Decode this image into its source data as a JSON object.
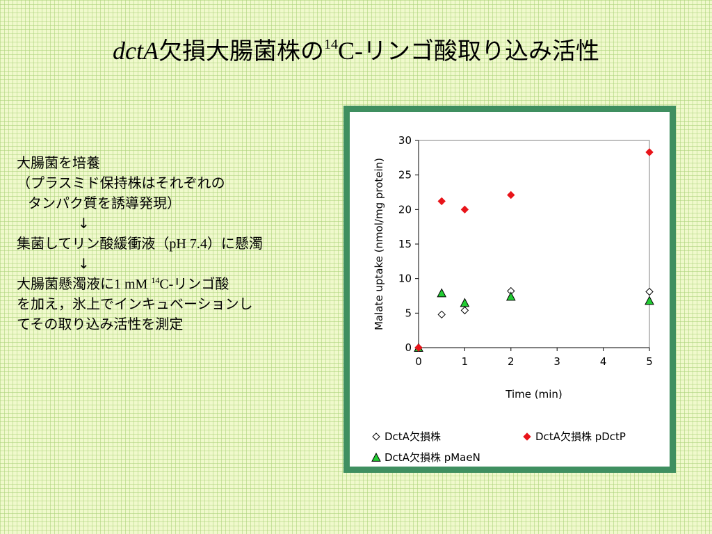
{
  "slide": {
    "title_gene": "dctA",
    "title_part1": "欠損大腸菌株の",
    "title_sup": "14",
    "title_c": "C-",
    "title_part2": "リンゴ酸取り込み活性"
  },
  "steps": {
    "line1": "大腸菌を培養",
    "line2": "（プラスミド保持株はそれぞれの",
    "line3": "タンパク質を誘導発現）",
    "arrow": "↓",
    "line4a": "集菌してリン酸緩衝液（",
    "line4ph": "pH 7.4",
    "line4b": "）に懸濁",
    "line5a": "大腸菌懸濁液に",
    "line5conc": "1 mM ",
    "line5sup": "14",
    "line5c": "C-",
    "line5b": "リンゴ酸",
    "line6": "を加え，氷上でインキュベーションし",
    "line7": "てその取り込み活性を測定"
  },
  "chart_data": {
    "type": "scatter",
    "xlabel": "Time (min)",
    "ylabel": "Malate uptake (nmol/mg protein)",
    "xlim": [
      0,
      5
    ],
    "ylim": [
      0,
      30
    ],
    "x_ticks": [
      0,
      1,
      2,
      3,
      4,
      5
    ],
    "y_ticks": [
      0,
      5,
      10,
      15,
      20,
      25,
      30
    ],
    "grid": false,
    "legend_position": "bottom",
    "series": [
      {
        "name": "DctA欠損株",
        "marker": "diamond-open",
        "color": "#000000",
        "points": [
          [
            0,
            0
          ],
          [
            0.5,
            4.8
          ],
          [
            1,
            5.4
          ],
          [
            2,
            8.2
          ],
          [
            5,
            8.1
          ]
        ]
      },
      {
        "name": "DctA欠損株 pDctP",
        "marker": "diamond-filled",
        "color": "#e8141a",
        "points": [
          [
            0,
            0
          ],
          [
            0.5,
            21.2
          ],
          [
            1,
            20.0
          ],
          [
            2,
            22.1
          ],
          [
            5,
            28.3
          ]
        ]
      },
      {
        "name": "DctA欠損株 pMaeN",
        "marker": "triangle-filled",
        "color": "#22cc33",
        "points": [
          [
            0,
            0
          ],
          [
            0.5,
            7.9
          ],
          [
            1,
            6.5
          ],
          [
            2,
            7.4
          ],
          [
            5,
            6.8
          ]
        ]
      }
    ]
  }
}
